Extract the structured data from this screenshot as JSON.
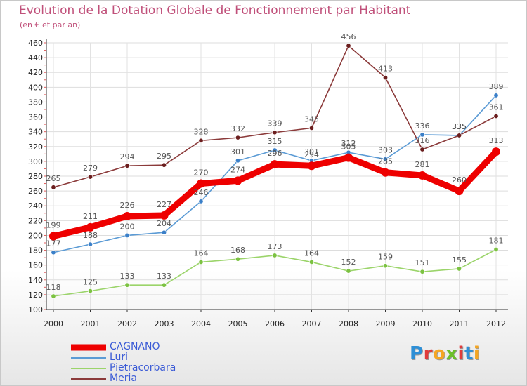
{
  "title": "Evolution de la Dotation Globale de Fonctionnement par Habitant",
  "subtitle": "(en € et par an)",
  "brand": {
    "text": "Proxiti",
    "letter_colors": [
      "#2e8fd6",
      "#e03b3b",
      "#f5a623",
      "#6cbf2a",
      "#e03b3b",
      "#2e8fd6",
      "#f5a623"
    ]
  },
  "colors": {
    "title": "#c0507a",
    "legend_text": "#3b5bd6",
    "axis_text": "#222222",
    "value_labels": "#555555"
  },
  "chart_data": {
    "type": "line",
    "title": "Evolution de la Dotation Globale de Fonctionnement par Habitant",
    "subtitle": "(en € et par an)",
    "xlabel": "",
    "ylabel": "",
    "x": [
      "2000",
      "2001",
      "2002",
      "2003",
      "2004",
      "2005",
      "2006",
      "2007",
      "2008",
      "2009",
      "2010",
      "2011",
      "2012"
    ],
    "ylim": [
      100,
      460
    ],
    "yticks": [
      100,
      120,
      140,
      160,
      180,
      200,
      220,
      240,
      260,
      280,
      300,
      320,
      340,
      360,
      380,
      400,
      420,
      440,
      460
    ],
    "grid": true,
    "legend_position": "bottom-left",
    "series": [
      {
        "name": "CAGNANO",
        "values": [
          199,
          211,
          226,
          227,
          270,
          274,
          296,
          294,
          305,
          285,
          281,
          260,
          313
        ],
        "color": "#ee0000",
        "thick": true
      },
      {
        "name": "Luri",
        "values": [
          177,
          188,
          200,
          204,
          246,
          301,
          315,
          301,
          312,
          303,
          336,
          335,
          389
        ],
        "color": "#5b9bd5",
        "dot": "#3a7fc8"
      },
      {
        "name": "Pietracorbara",
        "values": [
          118,
          125,
          133,
          133,
          164,
          168,
          173,
          164,
          152,
          159,
          151,
          155,
          181
        ],
        "color": "#9bd46a",
        "dot": "#7cc242"
      },
      {
        "name": "Meria",
        "values": [
          265,
          279,
          294,
          295,
          328,
          332,
          339,
          345,
          456,
          413,
          316,
          335,
          361
        ],
        "color": "#8b3a3a",
        "dot": "#6b1e1e"
      }
    ]
  }
}
